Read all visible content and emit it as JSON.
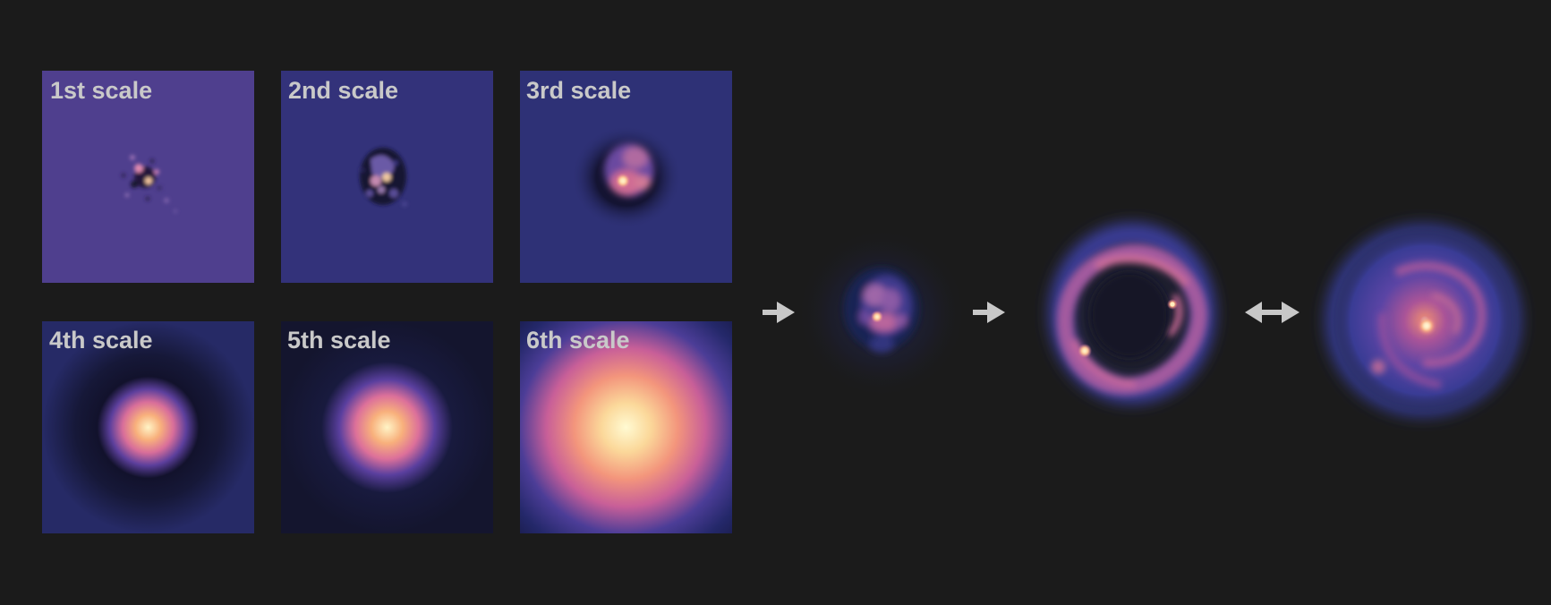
{
  "panels": [
    {
      "label": "1st scale"
    },
    {
      "label": "2nd scale"
    },
    {
      "label": "3rd scale"
    },
    {
      "label": "4th scale"
    },
    {
      "label": "5th scale"
    },
    {
      "label": "6th scale"
    }
  ],
  "colors": {
    "background": "#1b1b1b",
    "label_text": "#c9c9c9",
    "arrow": "#c8c8c8",
    "scale1_bg": "#4f3f8e",
    "scale2_bg": "#33327a",
    "scale3_bg": "#2e3176",
    "colormap": [
      "#0b0b1e",
      "#2a2f78",
      "#6b4aa2",
      "#d96e9a",
      "#f5a57f",
      "#fff3c4"
    ]
  },
  "arrows": [
    {
      "kind": "right-arrow"
    },
    {
      "kind": "right-arrow"
    },
    {
      "kind": "double-arrow"
    }
  ],
  "images": [
    {
      "name": "reconstructed-source"
    },
    {
      "name": "lensed-ring"
    },
    {
      "name": "observed-galaxy"
    }
  ]
}
